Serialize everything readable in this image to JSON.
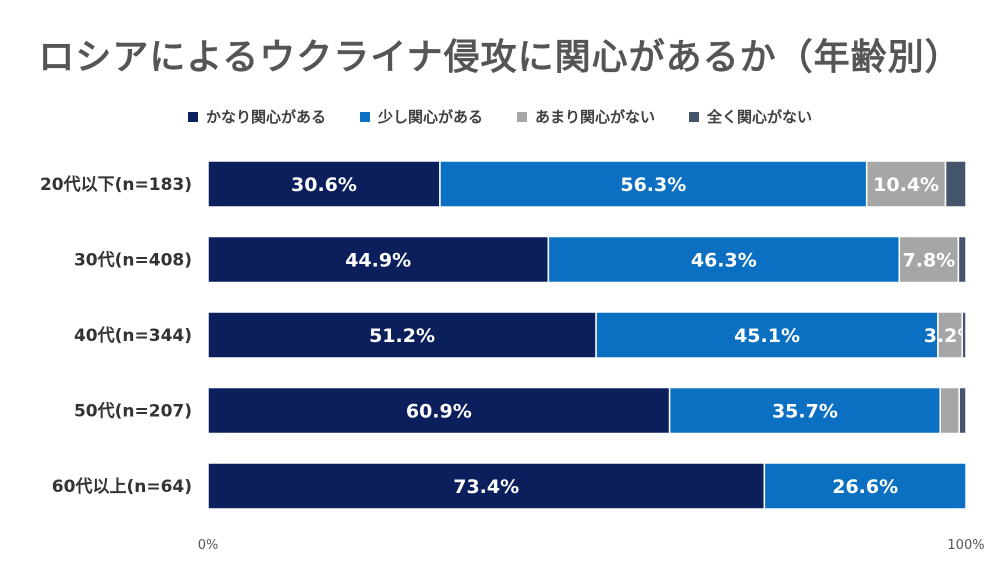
{
  "title": "ロシアによるウクライナ侵攻に関心があるか（年齢別）",
  "colors": {
    "very_interested": "#0B1F5C",
    "somewhat_interested": "#0B70C2",
    "not_very_interested": "#A6A6A6",
    "not_at_all": "#44546A"
  },
  "chart_data": {
    "type": "bar",
    "orientation": "horizontal",
    "stacked": "percent",
    "categories": [
      "20代以下(n=183)",
      "30代(n=408)",
      "40代(n=344)",
      "50代(n=207)",
      "60代以上(n=64)"
    ],
    "series": [
      {
        "name": "かなり関心がある",
        "values": [
          30.6,
          44.9,
          51.2,
          60.9,
          73.4
        ]
      },
      {
        "name": "少し関心がある",
        "values": [
          56.3,
          46.3,
          45.1,
          35.7,
          26.6
        ]
      },
      {
        "name": "あまり関心がない",
        "values": [
          10.4,
          7.8,
          3.2,
          2.5,
          0
        ]
      },
      {
        "name": "全く関心がない",
        "values": [
          2.7,
          1.0,
          0.5,
          0.9,
          0
        ]
      }
    ],
    "data_labels": [
      [
        "30.6%",
        "56.3%",
        "10.4%",
        ""
      ],
      [
        "44.9%",
        "46.3%",
        "7.8%",
        ""
      ],
      [
        "51.2%",
        "45.1%",
        "3.2%",
        ""
      ],
      [
        "60.9%",
        "35.7%",
        "",
        ""
      ],
      [
        "73.4%",
        "26.6%",
        "",
        ""
      ]
    ],
    "xlim": [
      0,
      100
    ],
    "x_ticks": [
      "0%",
      "100%"
    ],
    "legend_position": "top",
    "grid": false
  }
}
